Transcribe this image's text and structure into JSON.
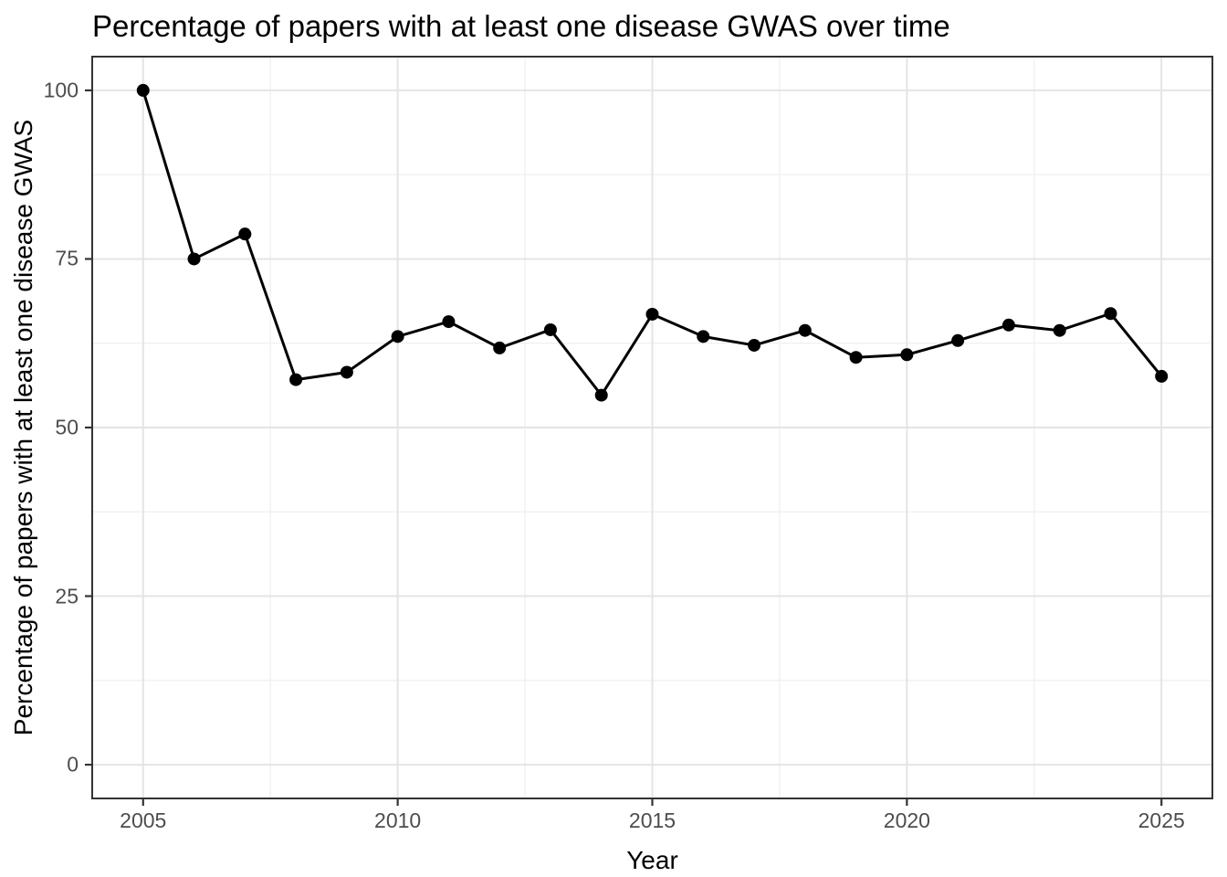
{
  "chart_data": {
    "type": "line",
    "title": "Percentage of papers with at least one disease GWAS over time",
    "xlabel": "Year",
    "ylabel": "Percentage of papers with at least one disease GWAS",
    "x": [
      2005,
      2006,
      2007,
      2008,
      2009,
      2010,
      2011,
      2012,
      2013,
      2014,
      2015,
      2016,
      2017,
      2018,
      2019,
      2020,
      2021,
      2022,
      2023,
      2024,
      2025
    ],
    "values": [
      100,
      75,
      78.7,
      57.1,
      58.2,
      63.5,
      65.7,
      61.8,
      64.5,
      54.8,
      66.8,
      63.5,
      62.2,
      64.4,
      60.4,
      60.8,
      62.9,
      65.2,
      64.4,
      66.9,
      57.6
    ],
    "x_domain": [
      2004,
      2026
    ],
    "y_domain": [
      -5,
      105
    ],
    "x_ticks": [
      2005,
      2010,
      2015,
      2020,
      2025
    ],
    "y_ticks": [
      0,
      25,
      50,
      75,
      100
    ],
    "x_minor_gridlines": [
      2007.5,
      2012.5,
      2017.5,
      2022.5
    ],
    "y_minor_gridlines": [
      12.5,
      37.5,
      62.5,
      87.5
    ],
    "grid": true,
    "legend_position": "none",
    "colors": {
      "line": "#000000",
      "point": "#000000",
      "grid_major": "#e4e4e4",
      "grid_minor": "#f0f0f0",
      "panel_border": "#333333",
      "tick_mark": "#333333",
      "tick_label": "#4d4d4d",
      "title_text": "#000000"
    }
  }
}
